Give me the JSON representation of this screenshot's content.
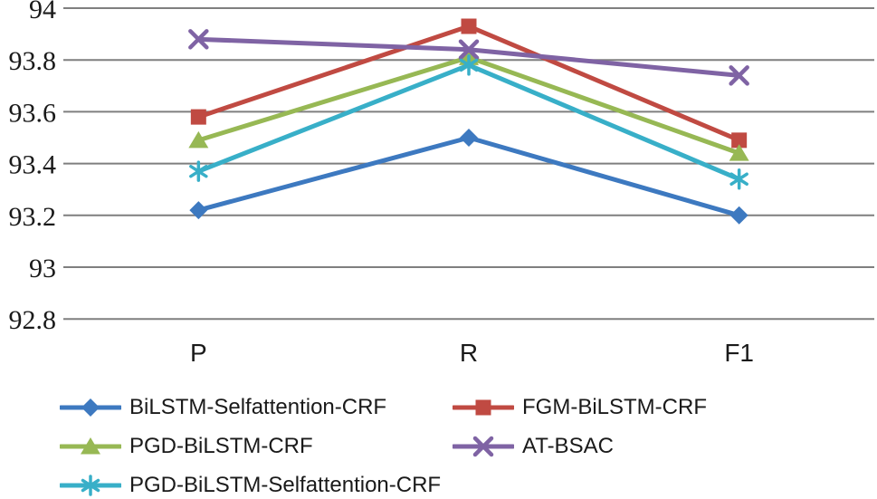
{
  "chart_data": {
    "type": "line",
    "title": "",
    "xlabel": "",
    "ylabel": "",
    "categories": [
      "P",
      "R",
      "F1"
    ],
    "series": [
      {
        "name": "BiLSTM-Selfattention-CRF",
        "marker": "diamond",
        "color": "#3D79C0",
        "values": [
          93.22,
          93.5,
          93.2
        ]
      },
      {
        "name": "FGM-BiLSTM-CRF",
        "marker": "square",
        "color": "#C04A42",
        "values": [
          93.58,
          93.93,
          93.49
        ]
      },
      {
        "name": "PGD-BiLSTM-CRF",
        "marker": "triangle",
        "color": "#97B854",
        "values": [
          93.49,
          93.81,
          93.44
        ]
      },
      {
        "name": "AT-BSAC",
        "marker": "x",
        "color": "#7F63A4",
        "values": [
          93.88,
          93.84,
          93.74
        ]
      },
      {
        "name": "PGD-BiLSTM-Selfattention-CRF",
        "marker": "asterisk",
        "color": "#38AFC8",
        "values": [
          93.37,
          93.78,
          93.34
        ]
      }
    ],
    "yticks": [
      94,
      93.8,
      93.6,
      93.4,
      93.2,
      93,
      92.8
    ],
    "ytick_labels": [
      "94",
      "93.8",
      "93.6",
      "93.4",
      "93.2",
      "93",
      "92.8"
    ],
    "ylim": [
      92.8,
      94
    ],
    "grid": "horizontal",
    "legend_position": "bottom"
  },
  "colors": {
    "gridline": "#7F7F7F",
    "text": "#1a1a1a",
    "background": "#ffffff"
  }
}
